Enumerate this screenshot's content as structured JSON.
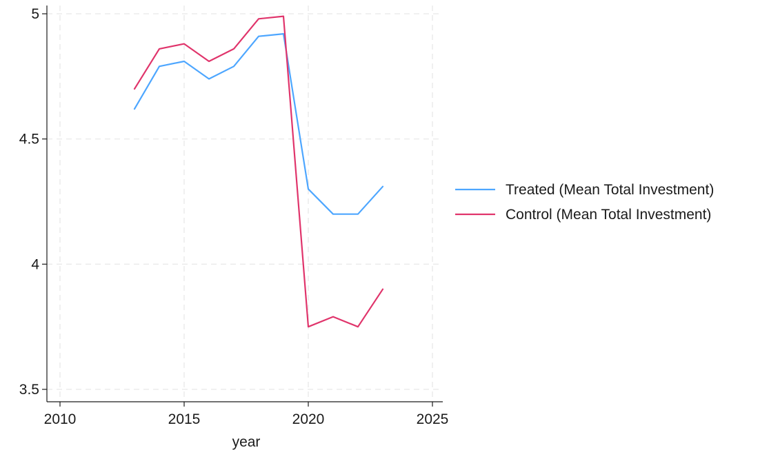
{
  "chart_data": {
    "type": "line",
    "xlabel": "year",
    "ylabel": "",
    "xlim": [
      2010,
      2025
    ],
    "ylim": [
      3.5,
      5
    ],
    "xticks": [
      2010,
      2015,
      2020,
      2025
    ],
    "yticks": [
      3.5,
      4,
      4.5,
      5
    ],
    "grid": true,
    "legend_position": "right",
    "series": [
      {
        "name": "Treated (Mean Total Investment)",
        "color": "#4da6ff",
        "x": [
          2013,
          2014,
          2015,
          2016,
          2017,
          2018,
          2019,
          2020,
          2021,
          2022,
          2023
        ],
        "y": [
          4.62,
          4.79,
          4.81,
          4.74,
          4.79,
          4.91,
          4.92,
          4.3,
          4.2,
          4.2,
          4.31
        ]
      },
      {
        "name": "Control (Mean Total Investment)",
        "color": "#e0346b",
        "x": [
          2013,
          2014,
          2015,
          2016,
          2017,
          2018,
          2019,
          2020,
          2021,
          2022,
          2023
        ],
        "y": [
          4.7,
          4.86,
          4.88,
          4.81,
          4.86,
          4.98,
          4.99,
          3.75,
          3.79,
          3.75,
          3.9
        ]
      }
    ]
  }
}
